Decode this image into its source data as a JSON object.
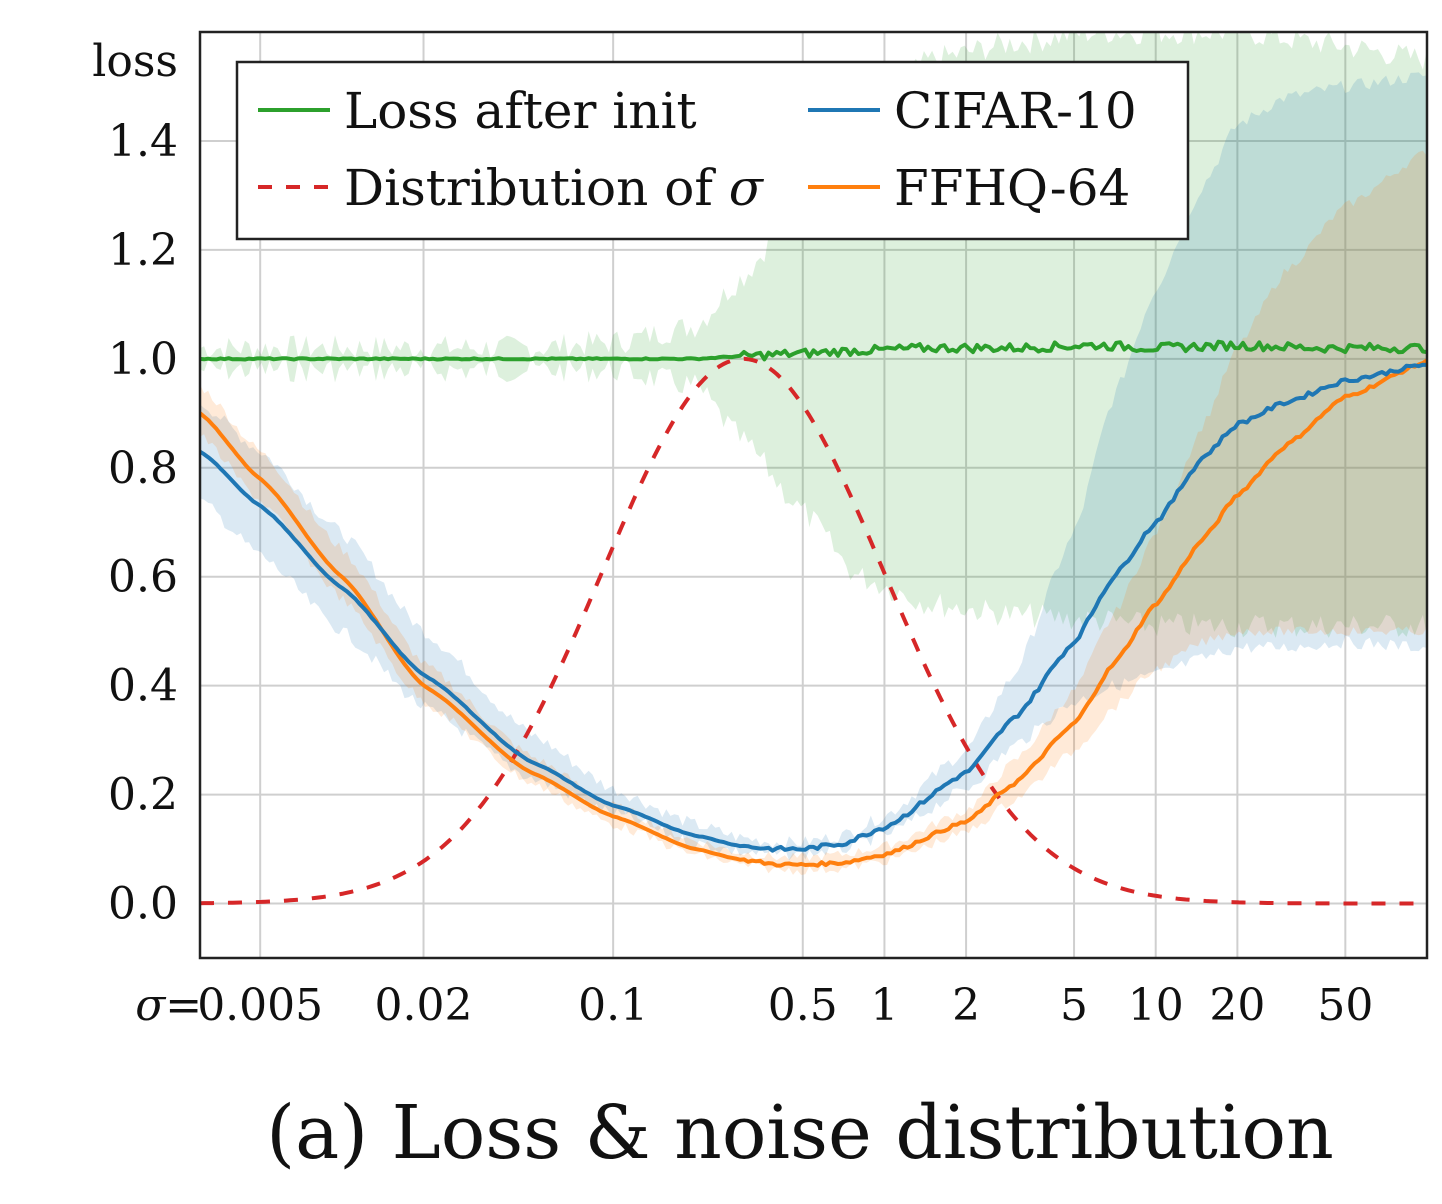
{
  "chart_data": {
    "type": "line",
    "title": "",
    "caption": "(a) Loss & noise distribution",
    "xlabel_prefix": "σ=",
    "ylabel": "loss",
    "x_scale": "log",
    "xlim": [
      0.003,
      100
    ],
    "ylim": [
      -0.1,
      1.6
    ],
    "x_ticks": [
      0.005,
      0.02,
      0.1,
      0.5,
      1,
      2,
      5,
      10,
      20,
      50
    ],
    "x_tick_labels": [
      "0.005",
      "0.02",
      "0.1",
      "0.5",
      "1",
      "2",
      "5",
      "10",
      "20",
      "50"
    ],
    "y_ticks": [
      0.0,
      0.2,
      0.4,
      0.6,
      0.8,
      1.0,
      1.2,
      1.4
    ],
    "y_tick_labels": [
      "0.0",
      "0.2",
      "0.4",
      "0.6",
      "0.8",
      "1.0",
      "1.2",
      "1.4"
    ],
    "grid": true,
    "legend_position": "top",
    "series": [
      {
        "name": "Loss after init",
        "color": "#2ca02c",
        "style": "solid",
        "x": [
          0.003,
          0.01,
          0.05,
          0.1,
          0.2,
          0.3,
          0.5,
          0.8,
          1.5,
          3,
          6,
          10,
          20,
          40,
          100
        ],
        "y": [
          1.0,
          1.0,
          1.0,
          1.0,
          1.0,
          1.005,
          1.01,
          1.015,
          1.02,
          1.02,
          1.025,
          1.02,
          1.025,
          1.02,
          1.02
        ],
        "band_lower": [
          0.98,
          0.98,
          0.98,
          0.98,
          0.95,
          0.85,
          0.72,
          0.6,
          0.55,
          0.53,
          0.52,
          0.51,
          0.51,
          0.51,
          0.51
        ],
        "band_upper": [
          1.02,
          1.02,
          1.02,
          1.03,
          1.06,
          1.15,
          1.3,
          1.45,
          1.55,
          1.58,
          1.6,
          1.6,
          1.6,
          1.58,
          1.55
        ],
        "noise_amplitude": 0.008
      },
      {
        "name": "CIFAR-10",
        "color": "#1f77b4",
        "style": "solid",
        "x": [
          0.003,
          0.005,
          0.01,
          0.02,
          0.05,
          0.1,
          0.2,
          0.3,
          0.4,
          0.5,
          0.7,
          1,
          2,
          3,
          5,
          7,
          10,
          15,
          20,
          30,
          50,
          100
        ],
        "y": [
          0.83,
          0.73,
          0.58,
          0.42,
          0.26,
          0.18,
          0.125,
          0.105,
          0.1,
          0.1,
          0.11,
          0.14,
          0.24,
          0.34,
          0.48,
          0.6,
          0.7,
          0.82,
          0.88,
          0.92,
          0.96,
          0.99
        ],
        "band_lower": [
          0.74,
          0.64,
          0.5,
          0.36,
          0.23,
          0.165,
          0.11,
          0.094,
          0.09,
          0.091,
          0.1,
          0.125,
          0.21,
          0.29,
          0.37,
          0.4,
          0.42,
          0.45,
          0.47,
          0.47,
          0.48,
          0.47
        ],
        "band_upper": [
          0.92,
          0.83,
          0.68,
          0.5,
          0.31,
          0.21,
          0.145,
          0.12,
          0.112,
          0.112,
          0.125,
          0.16,
          0.28,
          0.42,
          0.68,
          0.93,
          1.13,
          1.32,
          1.43,
          1.48,
          1.5,
          1.52
        ],
        "noise_amplitude": 0.004
      },
      {
        "name": "FFHQ-64",
        "color": "#ff7f0e",
        "style": "solid",
        "x": [
          0.003,
          0.005,
          0.01,
          0.02,
          0.05,
          0.1,
          0.2,
          0.3,
          0.4,
          0.5,
          0.7,
          1,
          2,
          3,
          5,
          7,
          10,
          15,
          20,
          30,
          50,
          100
        ],
        "y": [
          0.9,
          0.78,
          0.6,
          0.4,
          0.24,
          0.16,
          0.1,
          0.08,
          0.072,
          0.071,
          0.075,
          0.09,
          0.15,
          0.22,
          0.33,
          0.44,
          0.55,
          0.67,
          0.75,
          0.84,
          0.93,
          0.995
        ],
        "band_lower": [
          0.86,
          0.74,
          0.56,
          0.37,
          0.22,
          0.145,
          0.09,
          0.07,
          0.062,
          0.061,
          0.064,
          0.078,
          0.13,
          0.19,
          0.28,
          0.36,
          0.43,
          0.48,
          0.5,
          0.5,
          0.5,
          0.5
        ],
        "band_upper": [
          0.95,
          0.83,
          0.65,
          0.44,
          0.27,
          0.18,
          0.115,
          0.093,
          0.085,
          0.084,
          0.09,
          0.105,
          0.17,
          0.26,
          0.39,
          0.53,
          0.68,
          0.88,
          1.02,
          1.16,
          1.28,
          1.38
        ],
        "noise_amplitude": 0.003
      },
      {
        "name": "Distribution of σ",
        "name_text": "Distribution of ",
        "name_symbol": "σ",
        "color": "#d62728",
        "style": "dashed",
        "x": [
          0.003,
          0.005,
          0.01,
          0.02,
          0.05,
          0.1,
          0.2,
          0.3,
          0.5,
          1,
          2,
          5,
          10,
          20,
          50,
          100
        ],
        "y": [
          0.0,
          0.002,
          0.01,
          0.06,
          0.28,
          0.62,
          0.92,
          1.0,
          0.92,
          0.62,
          0.28,
          0.06,
          0.01,
          0.002,
          0.0,
          0.0
        ],
        "distribution": {
          "kind": "lognormal",
          "mean_ln_sigma": -1.2,
          "std_ln_sigma": 1.2,
          "peak": 1.0
        }
      }
    ],
    "legend": [
      {
        "label": "Loss after init",
        "color": "#2ca02c",
        "style": "solid"
      },
      {
        "label": "CIFAR-10",
        "color": "#1f77b4",
        "style": "solid"
      },
      {
        "label": "Distribution of σ",
        "text": "Distribution of ",
        "symbol": "σ",
        "color": "#d62728",
        "style": "dashed"
      },
      {
        "label": "FFHQ-64",
        "color": "#ff7f0e",
        "style": "solid"
      }
    ]
  }
}
